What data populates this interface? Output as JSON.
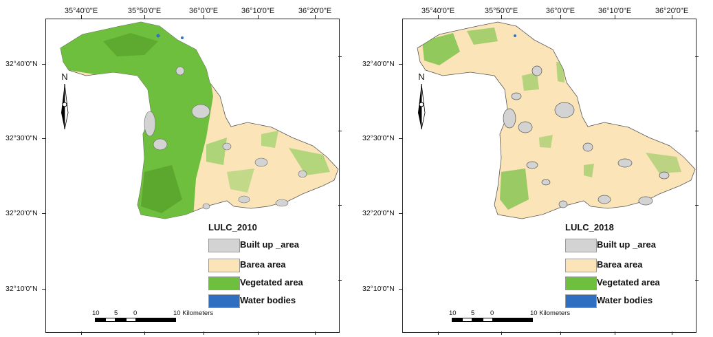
{
  "colors": {
    "built_up": "#d3d3d3",
    "barren": "#fbe5b8",
    "vegetated": "#6fbf3f",
    "water": "#2f6fc1"
  },
  "axes": {
    "x_ticks": [
      "35°40'0\"E",
      "35°50'0\"E",
      "36°0'0\"E",
      "36°10'0\"E",
      "36°20'0\"E"
    ],
    "y_ticks": [
      "32°40'0\"N",
      "32°30'0\"N",
      "32°20'0\"N",
      "32°10'0\"N"
    ]
  },
  "north_arrow": {
    "letter": "N",
    "icon": "north-arrow-icon"
  },
  "legend_items": [
    "Built up _area",
    "Barea area",
    "Vegetated area",
    "Water bodies"
  ],
  "scale_bar": {
    "labels": [
      "10",
      "5",
      "0",
      "10 Kilometers"
    ]
  },
  "maps": [
    {
      "legend_title": "LULC_2010",
      "year": 2010,
      "dominant_class": "vegetated"
    },
    {
      "legend_title": "LULC_2018",
      "year": 2018,
      "dominant_class": "barren"
    }
  ]
}
